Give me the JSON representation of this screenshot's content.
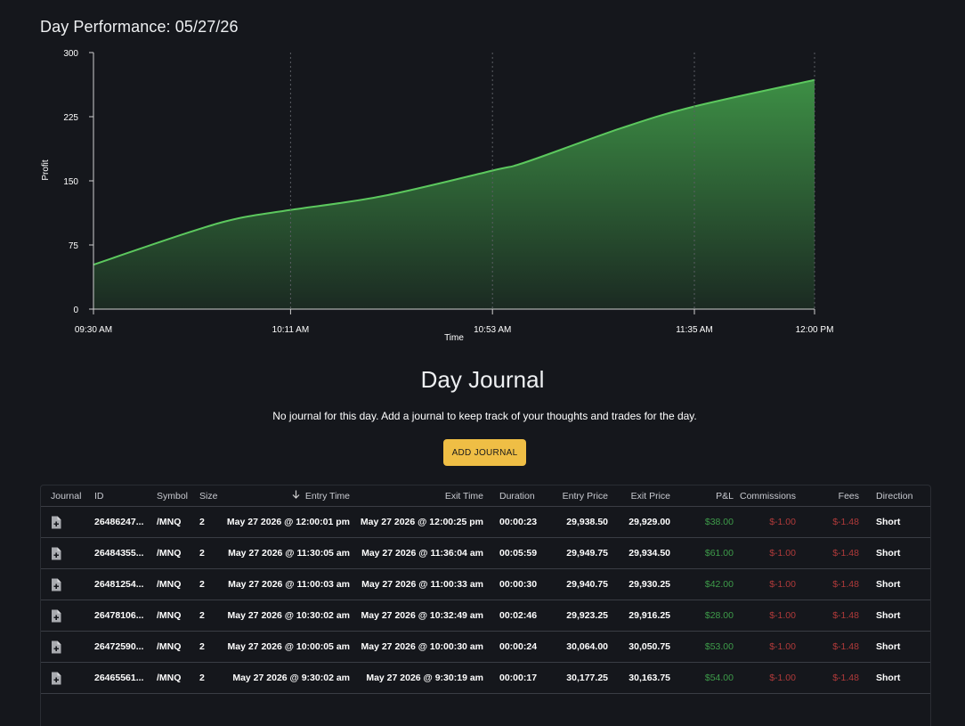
{
  "page": {
    "title": "Day Performance: 05/27/26"
  },
  "chart_data": {
    "type": "area",
    "title": "",
    "xlabel": "Time",
    "ylabel": "Profit",
    "x_ticks": [
      "09:30 AM",
      "10:11 AM",
      "10:53 AM",
      "11:35 AM",
      "12:00 PM"
    ],
    "y_ticks": [
      "0",
      "75",
      "150",
      "225",
      "300"
    ],
    "ylim": [
      0,
      300
    ],
    "grid": "vertical dashed",
    "series": [
      {
        "x": [
          "09:30",
          "09:50",
          "10:00",
          "10:11",
          "10:30",
          "10:53",
          "11:00",
          "11:20",
          "11:35",
          "12:00"
        ],
        "values": [
          52,
          90,
          106,
          116,
          132,
          162,
          172,
          212,
          237,
          268
        ]
      }
    ],
    "colors": {
      "line": "#5cc85e",
      "fill_top": "#3d8f45",
      "fill_bottom": "#1b2a22"
    }
  },
  "journal": {
    "title": "Day Journal",
    "message": "No journal for this day. Add a journal to keep track of your thoughts and trades for the day.",
    "add_button": "ADD JOURNAL"
  },
  "table": {
    "columns": [
      "Journal",
      "ID",
      "Symbol",
      "Size",
      "Entry Time",
      "Exit Time",
      "Duration",
      "Entry Price",
      "Exit Price",
      "P&L",
      "Commissions",
      "Fees",
      "Direction"
    ],
    "sort_icon": "arrow-down-icon",
    "rows": [
      {
        "icon": "add-note-icon",
        "id": "26486247...",
        "symbol": "/MNQ",
        "size": "2",
        "entry_time": "May 27 2026 @ 12:00:01 pm",
        "exit_time": "May 27 2026 @ 12:00:25 pm",
        "duration": "00:00:23",
        "entry_price": "29,938.50",
        "exit_price": "29,929.00",
        "pnl": "$38.00",
        "commissions": "$-1.00",
        "fees": "$-1.48",
        "direction": "Short"
      },
      {
        "icon": "add-note-icon",
        "id": "26484355...",
        "symbol": "/MNQ",
        "size": "2",
        "entry_time": "May 27 2026 @ 11:30:05 am",
        "exit_time": "May 27 2026 @ 11:36:04 am",
        "duration": "00:05:59",
        "entry_price": "29,949.75",
        "exit_price": "29,934.50",
        "pnl": "$61.00",
        "commissions": "$-1.00",
        "fees": "$-1.48",
        "direction": "Short"
      },
      {
        "icon": "add-note-icon",
        "id": "26481254...",
        "symbol": "/MNQ",
        "size": "2",
        "entry_time": "May 27 2026 @ 11:00:03 am",
        "exit_time": "May 27 2026 @ 11:00:33 am",
        "duration": "00:00:30",
        "entry_price": "29,940.75",
        "exit_price": "29,930.25",
        "pnl": "$42.00",
        "commissions": "$-1.00",
        "fees": "$-1.48",
        "direction": "Short"
      },
      {
        "icon": "add-note-icon",
        "id": "26478106...",
        "symbol": "/MNQ",
        "size": "2",
        "entry_time": "May 27 2026 @ 10:30:02 am",
        "exit_time": "May 27 2026 @ 10:32:49 am",
        "duration": "00:02:46",
        "entry_price": "29,923.25",
        "exit_price": "29,916.25",
        "pnl": "$28.00",
        "commissions": "$-1.00",
        "fees": "$-1.48",
        "direction": "Short"
      },
      {
        "icon": "add-note-icon",
        "id": "26472590...",
        "symbol": "/MNQ",
        "size": "2",
        "entry_time": "May 27 2026 @ 10:00:05 am",
        "exit_time": "May 27 2026 @ 10:00:30 am",
        "duration": "00:00:24",
        "entry_price": "30,064.00",
        "exit_price": "30,050.75",
        "pnl": "$53.00",
        "commissions": "$-1.00",
        "fees": "$-1.48",
        "direction": "Short"
      },
      {
        "icon": "add-note-icon",
        "id": "26465561...",
        "symbol": "/MNQ",
        "size": "2",
        "entry_time": "May 27 2026 @ 9:30:02 am",
        "exit_time": "May 27 2026 @ 9:30:19 am",
        "duration": "00:00:17",
        "entry_price": "30,177.25",
        "exit_price": "30,163.75",
        "pnl": "$54.00",
        "commissions": "$-1.00",
        "fees": "$-1.48",
        "direction": "Short"
      }
    ]
  }
}
